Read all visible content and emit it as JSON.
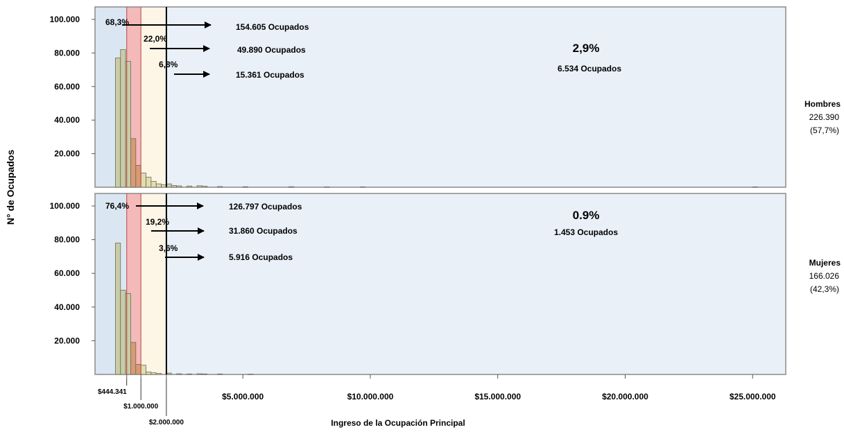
{
  "chart_data": {
    "type": "bar",
    "title": "",
    "xlabel": "Ingreso de la Ocupación Principal",
    "ylabel": "N° de Ocupados",
    "ylim": [
      0,
      100000
    ],
    "xlim": [
      -800000,
      26300000
    ],
    "y_ticks": [
      "100.000",
      "80.000",
      "60.000",
      "40.000",
      "20.000"
    ],
    "x_ticks": [
      {
        "value": 444341,
        "label": "$444.341"
      },
      {
        "value": 1000000,
        "label": "$1.000.000"
      },
      {
        "value": 2000000,
        "label": "$2.000.000"
      },
      {
        "value": 5000000,
        "label": "$5.000.000"
      },
      {
        "value": 10000000,
        "label": "$10.000.000"
      },
      {
        "value": 15000000,
        "label": "$15.000.000"
      },
      {
        "value": 20000000,
        "label": "$20.000.000"
      },
      {
        "value": 25000000,
        "label": "$25.000.000"
      }
    ],
    "bin_width": 200000,
    "bands": [
      {
        "from": -800000,
        "to": 444341,
        "color": "#dae6f2"
      },
      {
        "from": 444341,
        "to": 1000000,
        "color": "#f4b9b9"
      },
      {
        "from": 1000000,
        "to": 2000000,
        "color": "#fdf5e6"
      },
      {
        "from": 2000000,
        "to": 26300000,
        "color": "#e9f0f8"
      }
    ],
    "panels": [
      {
        "group": "Hombres",
        "total": "226.390",
        "share": "(57,7%)",
        "bins": [
          {
            "x": 0,
            "y": 77000
          },
          {
            "x": 200000,
            "y": 82000
          },
          {
            "x": 400000,
            "y": 75000
          },
          {
            "x": 600000,
            "y": 29000
          },
          {
            "x": 800000,
            "y": 13000
          },
          {
            "x": 1000000,
            "y": 8500
          },
          {
            "x": 1200000,
            "y": 6000
          },
          {
            "x": 1400000,
            "y": 3500
          },
          {
            "x": 1600000,
            "y": 2000
          },
          {
            "x": 1800000,
            "y": 1500
          },
          {
            "x": 2000000,
            "y": 2000
          },
          {
            "x": 2200000,
            "y": 1000
          },
          {
            "x": 2400000,
            "y": 800
          },
          {
            "x": 2800000,
            "y": 700
          },
          {
            "x": 3200000,
            "y": 900
          },
          {
            "x": 3400000,
            "y": 600
          },
          {
            "x": 4000000,
            "y": 400
          },
          {
            "x": 5000000,
            "y": 300
          },
          {
            "x": 6800000,
            "y": 300
          },
          {
            "x": 8200000,
            "y": 200
          },
          {
            "x": 9600000,
            "y": 200
          },
          {
            "x": 25000000,
            "y": 200
          }
        ],
        "annotations": [
          {
            "pct": "68,3%",
            "occupied": "154.605 Ocupados"
          },
          {
            "pct": "22,0%",
            "occupied": "49.890 Ocupados"
          },
          {
            "pct": "6,8%",
            "occupied": "15.361 Ocupados"
          },
          {
            "pct": "2,9%",
            "occupied": "6.534 Ocupados"
          }
        ]
      },
      {
        "group": "Mujeres",
        "total": "166.026",
        "share": "(42,3%)",
        "bins": [
          {
            "x": 0,
            "y": 78000
          },
          {
            "x": 200000,
            "y": 50000
          },
          {
            "x": 400000,
            "y": 48000
          },
          {
            "x": 600000,
            "y": 19000
          },
          {
            "x": 800000,
            "y": 6000
          },
          {
            "x": 1000000,
            "y": 5500
          },
          {
            "x": 1200000,
            "y": 1500
          },
          {
            "x": 1400000,
            "y": 1000
          },
          {
            "x": 1600000,
            "y": 600
          },
          {
            "x": 2000000,
            "y": 800
          },
          {
            "x": 2400000,
            "y": 400
          },
          {
            "x": 2800000,
            "y": 300
          },
          {
            "x": 3200000,
            "y": 400
          },
          {
            "x": 3400000,
            "y": 300
          },
          {
            "x": 4000000,
            "y": 300
          },
          {
            "x": 5200000,
            "y": 200
          }
        ],
        "annotations": [
          {
            "pct": "76,4%",
            "occupied": "126.797 Ocupados"
          },
          {
            "pct": "19,2%",
            "occupied": "31.860 Ocupados"
          },
          {
            "pct": "3,6%",
            "occupied": "5.916 Ocupados"
          },
          {
            "pct": "0.9%",
            "occupied": "1.453 Ocupados"
          }
        ]
      }
    ]
  }
}
